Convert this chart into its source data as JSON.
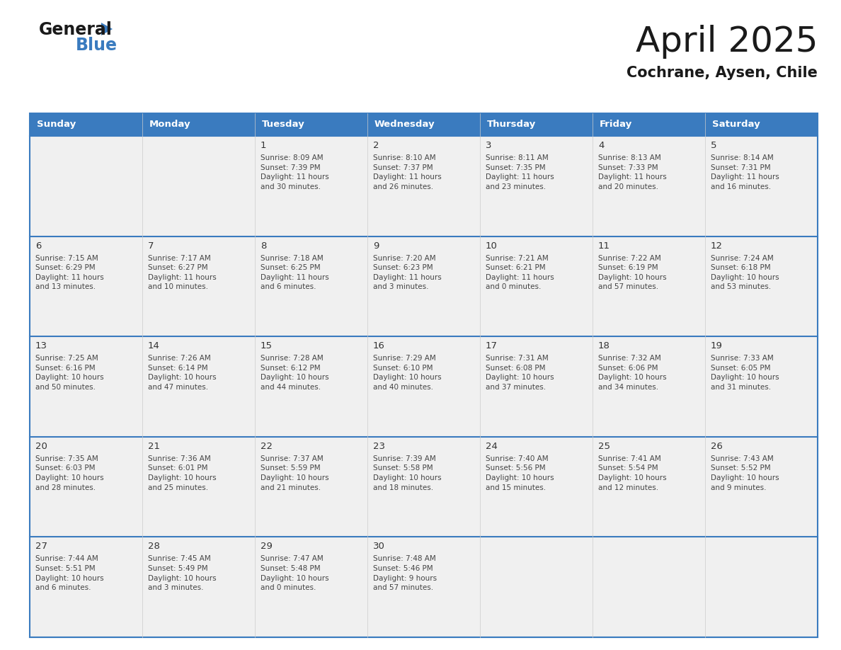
{
  "title": "April 2025",
  "subtitle": "Cochrane, Aysen, Chile",
  "days_of_week": [
    "Sunday",
    "Monday",
    "Tuesday",
    "Wednesday",
    "Thursday",
    "Friday",
    "Saturday"
  ],
  "header_bg": "#3a7bbf",
  "header_text": "#ffffff",
  "cell_bg_light": "#f0f0f0",
  "border_color": "#3a7bbf",
  "cell_border_color": "#aaaaaa",
  "day_number_color": "#333333",
  "cell_text_color": "#444444",
  "title_color": "#1a1a1a",
  "subtitle_color": "#1a1a1a",
  "calendar_data": [
    [
      {
        "day": "",
        "info": ""
      },
      {
        "day": "",
        "info": ""
      },
      {
        "day": "1",
        "info": "Sunrise: 8:09 AM\nSunset: 7:39 PM\nDaylight: 11 hours\nand 30 minutes."
      },
      {
        "day": "2",
        "info": "Sunrise: 8:10 AM\nSunset: 7:37 PM\nDaylight: 11 hours\nand 26 minutes."
      },
      {
        "day": "3",
        "info": "Sunrise: 8:11 AM\nSunset: 7:35 PM\nDaylight: 11 hours\nand 23 minutes."
      },
      {
        "day": "4",
        "info": "Sunrise: 8:13 AM\nSunset: 7:33 PM\nDaylight: 11 hours\nand 20 minutes."
      },
      {
        "day": "5",
        "info": "Sunrise: 8:14 AM\nSunset: 7:31 PM\nDaylight: 11 hours\nand 16 minutes."
      }
    ],
    [
      {
        "day": "6",
        "info": "Sunrise: 7:15 AM\nSunset: 6:29 PM\nDaylight: 11 hours\nand 13 minutes."
      },
      {
        "day": "7",
        "info": "Sunrise: 7:17 AM\nSunset: 6:27 PM\nDaylight: 11 hours\nand 10 minutes."
      },
      {
        "day": "8",
        "info": "Sunrise: 7:18 AM\nSunset: 6:25 PM\nDaylight: 11 hours\nand 6 minutes."
      },
      {
        "day": "9",
        "info": "Sunrise: 7:20 AM\nSunset: 6:23 PM\nDaylight: 11 hours\nand 3 minutes."
      },
      {
        "day": "10",
        "info": "Sunrise: 7:21 AM\nSunset: 6:21 PM\nDaylight: 11 hours\nand 0 minutes."
      },
      {
        "day": "11",
        "info": "Sunrise: 7:22 AM\nSunset: 6:19 PM\nDaylight: 10 hours\nand 57 minutes."
      },
      {
        "day": "12",
        "info": "Sunrise: 7:24 AM\nSunset: 6:18 PM\nDaylight: 10 hours\nand 53 minutes."
      }
    ],
    [
      {
        "day": "13",
        "info": "Sunrise: 7:25 AM\nSunset: 6:16 PM\nDaylight: 10 hours\nand 50 minutes."
      },
      {
        "day": "14",
        "info": "Sunrise: 7:26 AM\nSunset: 6:14 PM\nDaylight: 10 hours\nand 47 minutes."
      },
      {
        "day": "15",
        "info": "Sunrise: 7:28 AM\nSunset: 6:12 PM\nDaylight: 10 hours\nand 44 minutes."
      },
      {
        "day": "16",
        "info": "Sunrise: 7:29 AM\nSunset: 6:10 PM\nDaylight: 10 hours\nand 40 minutes."
      },
      {
        "day": "17",
        "info": "Sunrise: 7:31 AM\nSunset: 6:08 PM\nDaylight: 10 hours\nand 37 minutes."
      },
      {
        "day": "18",
        "info": "Sunrise: 7:32 AM\nSunset: 6:06 PM\nDaylight: 10 hours\nand 34 minutes."
      },
      {
        "day": "19",
        "info": "Sunrise: 7:33 AM\nSunset: 6:05 PM\nDaylight: 10 hours\nand 31 minutes."
      }
    ],
    [
      {
        "day": "20",
        "info": "Sunrise: 7:35 AM\nSunset: 6:03 PM\nDaylight: 10 hours\nand 28 minutes."
      },
      {
        "day": "21",
        "info": "Sunrise: 7:36 AM\nSunset: 6:01 PM\nDaylight: 10 hours\nand 25 minutes."
      },
      {
        "day": "22",
        "info": "Sunrise: 7:37 AM\nSunset: 5:59 PM\nDaylight: 10 hours\nand 21 minutes."
      },
      {
        "day": "23",
        "info": "Sunrise: 7:39 AM\nSunset: 5:58 PM\nDaylight: 10 hours\nand 18 minutes."
      },
      {
        "day": "24",
        "info": "Sunrise: 7:40 AM\nSunset: 5:56 PM\nDaylight: 10 hours\nand 15 minutes."
      },
      {
        "day": "25",
        "info": "Sunrise: 7:41 AM\nSunset: 5:54 PM\nDaylight: 10 hours\nand 12 minutes."
      },
      {
        "day": "26",
        "info": "Sunrise: 7:43 AM\nSunset: 5:52 PM\nDaylight: 10 hours\nand 9 minutes."
      }
    ],
    [
      {
        "day": "27",
        "info": "Sunrise: 7:44 AM\nSunset: 5:51 PM\nDaylight: 10 hours\nand 6 minutes."
      },
      {
        "day": "28",
        "info": "Sunrise: 7:45 AM\nSunset: 5:49 PM\nDaylight: 10 hours\nand 3 minutes."
      },
      {
        "day": "29",
        "info": "Sunrise: 7:47 AM\nSunset: 5:48 PM\nDaylight: 10 hours\nand 0 minutes."
      },
      {
        "day": "30",
        "info": "Sunrise: 7:48 AM\nSunset: 5:46 PM\nDaylight: 9 hours\nand 57 minutes."
      },
      {
        "day": "",
        "info": ""
      },
      {
        "day": "",
        "info": ""
      },
      {
        "day": "",
        "info": ""
      }
    ]
  ]
}
